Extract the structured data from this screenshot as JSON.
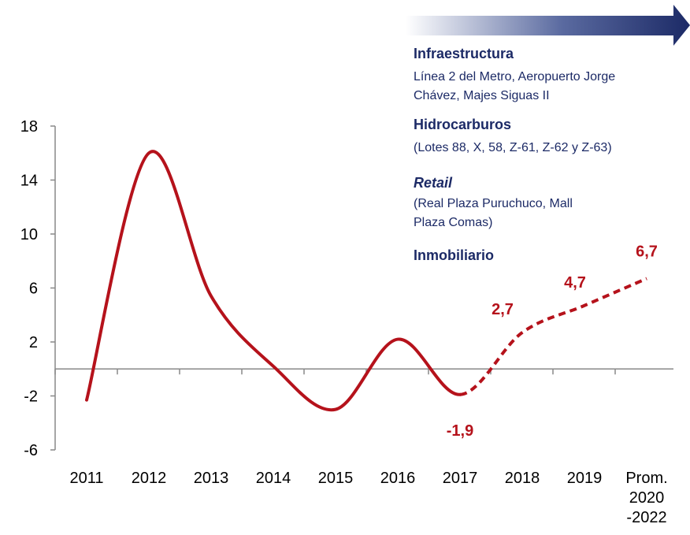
{
  "chart_data": {
    "type": "line",
    "categories": [
      "2011",
      "2012",
      "2013",
      "2014",
      "2015",
      "2016",
      "2017",
      "2018",
      "2019",
      "Prom.\n2020\n-2022"
    ],
    "values": [
      -2.3,
      16.0,
      5.4,
      0.2,
      -3.0,
      2.2,
      -1.9,
      2.7,
      4.7,
      6.7
    ],
    "value_labels": [
      null,
      null,
      null,
      null,
      null,
      null,
      "-1,9",
      "2,7",
      "4,7",
      "6,7"
    ],
    "color": "#b5121b",
    "dashed_from_index": 6,
    "ylim": [
      -6,
      18
    ],
    "yticks": [
      -6,
      -2,
      2,
      6,
      10,
      14,
      18
    ],
    "annotations": [
      {
        "title": "Infraestructura",
        "text": [
          "Línea 2 del Metro, Aeropuerto Jorge",
          "Chávez, Majes Siguas II"
        ]
      },
      {
        "title": "Hidrocarburos",
        "text": [
          "(Lotes 88, X, 58, Z-61, Z-62 y Z-63)"
        ]
      },
      {
        "title": "Retail",
        "text": [
          "(Real Plaza Puruchuco, Mall",
          "Plaza Comas)"
        ]
      },
      {
        "title": "Inmobiliario",
        "text": []
      }
    ]
  }
}
